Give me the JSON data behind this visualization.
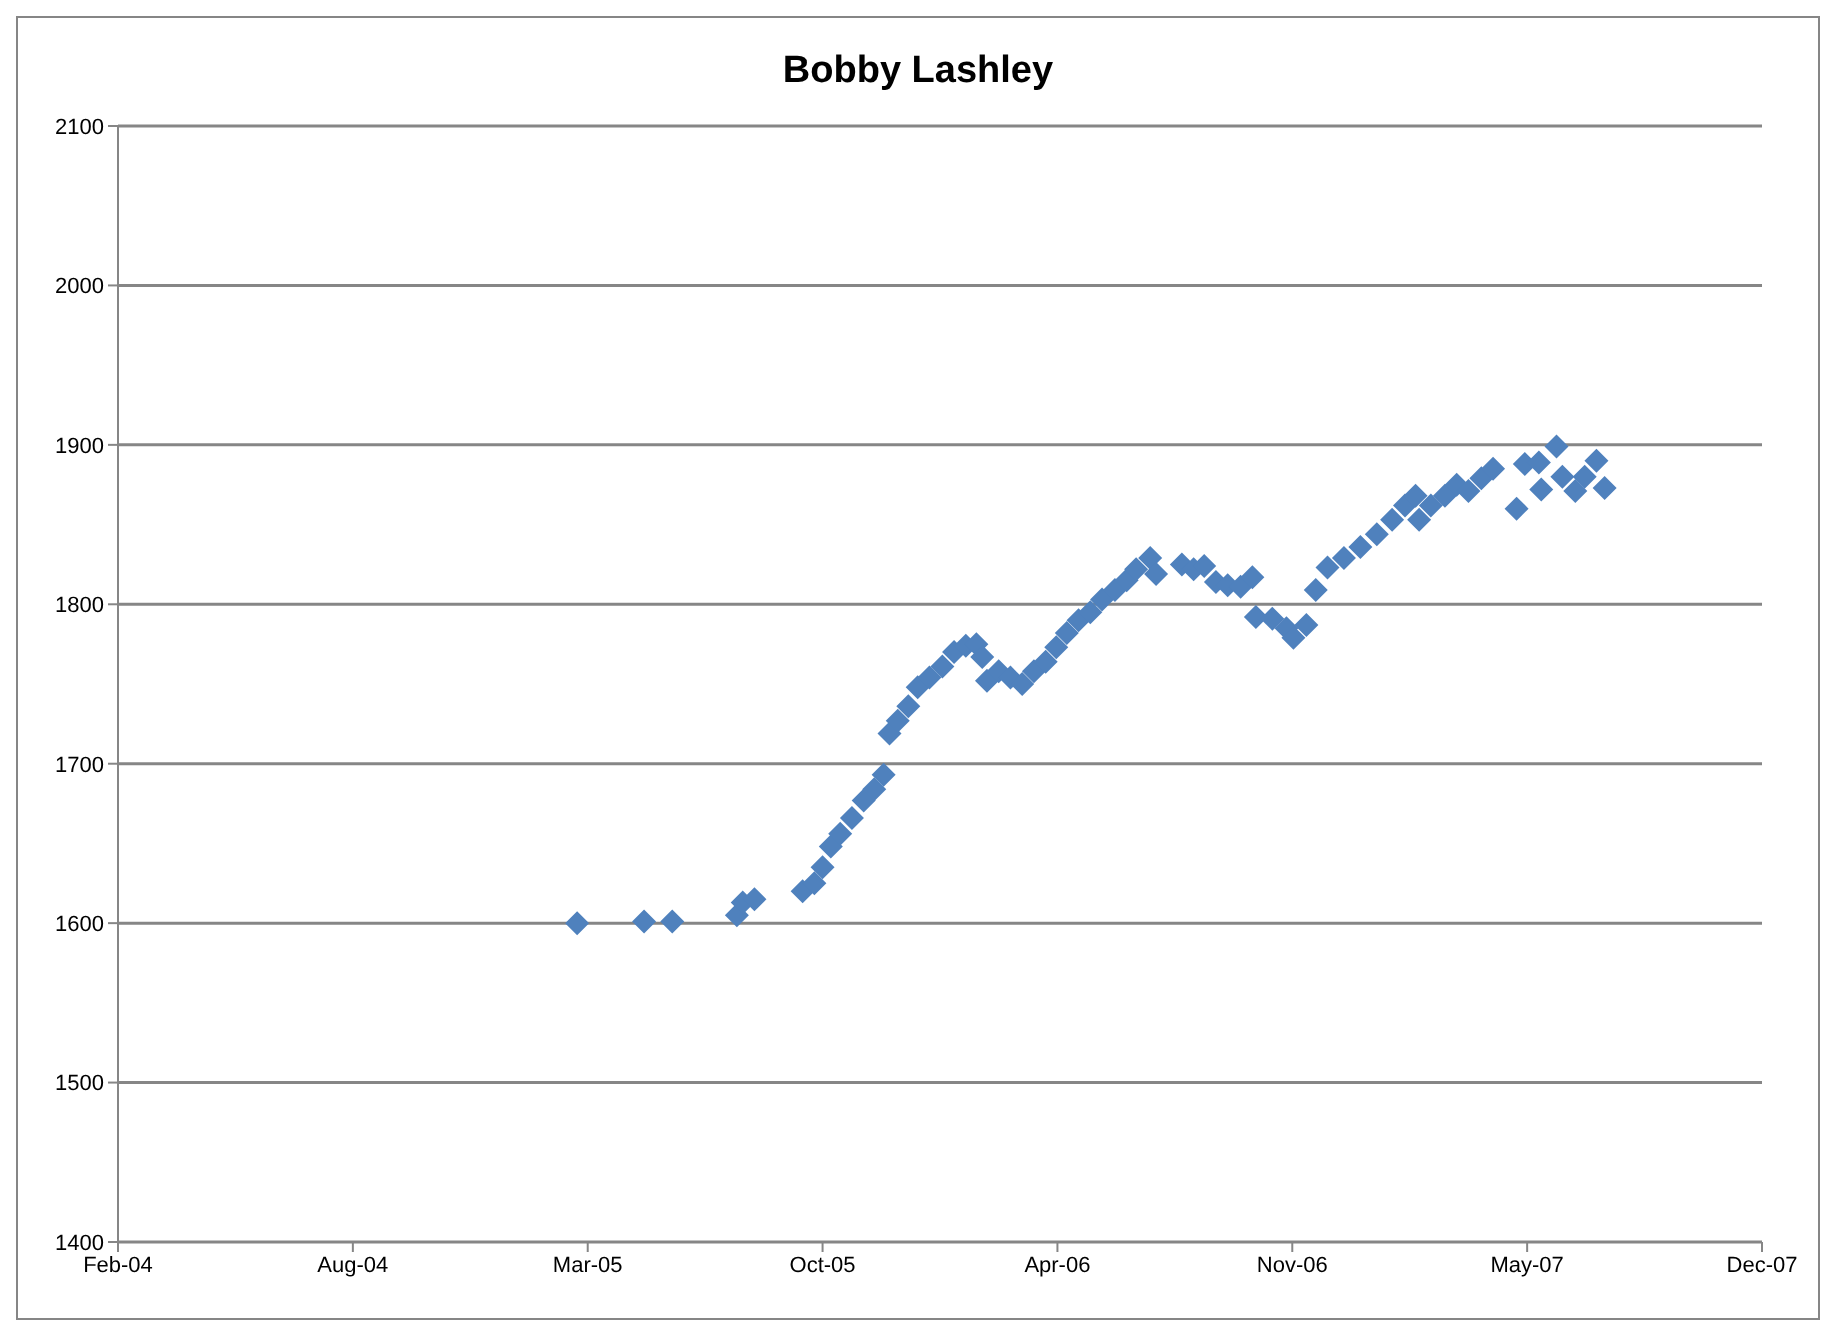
{
  "chart_data": {
    "type": "scatter",
    "title": "Bobby Lashley",
    "marker": "diamond",
    "grid": "y",
    "legend": false,
    "xlim": [
      "2004-02-10",
      "2007-12-11"
    ],
    "xticks": [
      {
        "value": "2004-02-10",
        "label": "Feb-04"
      },
      {
        "value": "2004-08-28",
        "label": "Aug-04"
      },
      {
        "value": "2005-03-16",
        "label": "Mar-05"
      },
      {
        "value": "2005-10-02",
        "label": "Oct-05"
      },
      {
        "value": "2006-04-20",
        "label": "Apr-06"
      },
      {
        "value": "2006-11-06",
        "label": "Nov-06"
      },
      {
        "value": "2007-05-25",
        "label": "May-07"
      },
      {
        "value": "2007-12-11",
        "label": "Dec-07"
      }
    ],
    "ylim": [
      1400,
      2100
    ],
    "yticks": [
      1400,
      1500,
      1600,
      1700,
      1800,
      1900,
      2000,
      2100
    ],
    "x": [
      "2005-03-07",
      "2005-05-03",
      "2005-05-27",
      "2005-07-21",
      "2005-07-26",
      "2005-08-05",
      "2005-09-15",
      "2005-09-25",
      "2005-10-02",
      "2005-10-09",
      "2005-10-17",
      "2005-10-27",
      "2005-11-06",
      "2005-11-15",
      "2005-11-23",
      "2005-11-28",
      "2005-12-05",
      "2005-12-14",
      "2005-12-22",
      "2006-01-01",
      "2006-01-12",
      "2006-01-22",
      "2006-02-01",
      "2006-02-10",
      "2006-02-15",
      "2006-02-19",
      "2006-03-01",
      "2006-03-11",
      "2006-03-21",
      "2006-03-31",
      "2006-04-10",
      "2006-04-19",
      "2006-04-28",
      "2006-05-08",
      "2006-05-18",
      "2006-05-28",
      "2006-06-08",
      "2006-06-18",
      "2006-06-26",
      "2006-07-08",
      "2006-07-13",
      "2006-08-04",
      "2006-08-14",
      "2006-08-23",
      "2006-09-02",
      "2006-09-12",
      "2006-09-23",
      "2006-10-03",
      "2006-10-06",
      "2006-10-20",
      "2006-11-01",
      "2006-11-07",
      "2006-11-18",
      "2006-11-26",
      "2006-12-06",
      "2006-12-20",
      "2007-01-03",
      "2007-01-17",
      "2007-01-30",
      "2007-02-10",
      "2007-02-19",
      "2007-02-22",
      "2007-03-04",
      "2007-03-16",
      "2007-03-26",
      "2007-04-05",
      "2007-04-16",
      "2007-04-26",
      "2007-05-16",
      "2007-05-23",
      "2007-06-04",
      "2007-06-06",
      "2007-06-19",
      "2007-06-24",
      "2007-07-05",
      "2007-07-13",
      "2007-07-23",
      "2007-07-30"
    ],
    "series": [
      {
        "color": "#4f81bd",
        "values": [
          1600,
          1601,
          1601,
          1605,
          1613,
          1615,
          1620,
          1625,
          1635,
          1648,
          1656,
          1666,
          1677,
          1684,
          1693,
          1719,
          1727,
          1736,
          1748,
          1754,
          1761,
          1770,
          1774,
          1775,
          1767,
          1752,
          1758,
          1754,
          1750,
          1758,
          1764,
          1773,
          1782,
          1790,
          1795,
          1803,
          1809,
          1815,
          1822,
          1829,
          1819,
          1825,
          1822,
          1824,
          1814,
          1812,
          1811,
          1817,
          1792,
          1791,
          1785,
          1779,
          1787,
          1809,
          1823,
          1829,
          1836,
          1844,
          1853,
          1862,
          1868,
          1853,
          1862,
          1868,
          1875,
          1871,
          1879,
          1885,
          1860,
          1888,
          1889,
          1872,
          1899,
          1880,
          1871,
          1880,
          1890,
          1873
        ]
      }
    ]
  }
}
